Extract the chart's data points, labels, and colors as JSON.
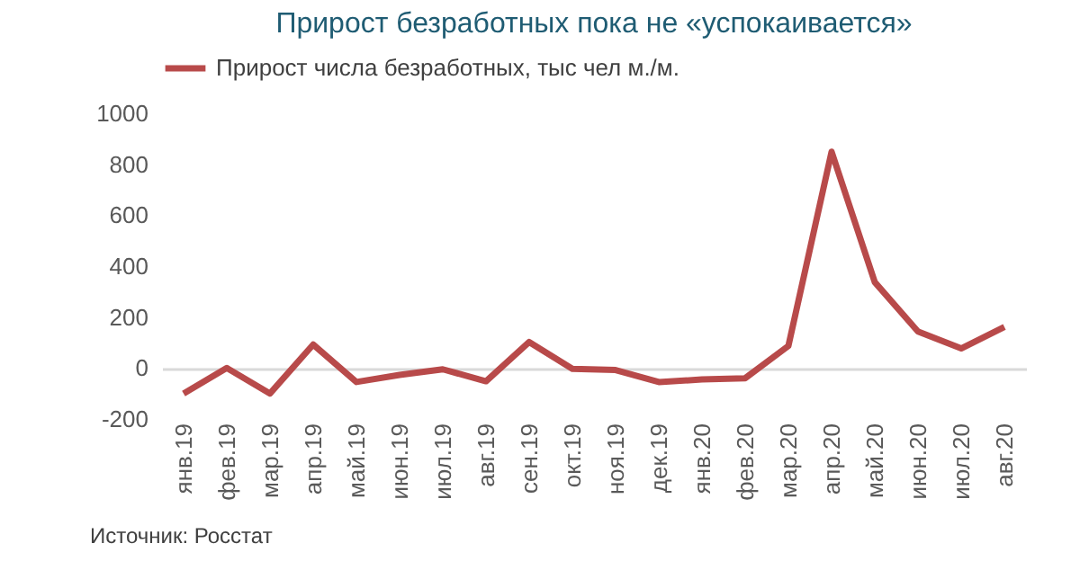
{
  "chart_data": {
    "type": "line",
    "title": "Прирост безработных пока не «успокаивается»",
    "categories": [
      "янв.19",
      "фев.19",
      "мар.19",
      "апр.19",
      "май.19",
      "июн.19",
      "июл.19",
      "авг.19",
      "сен.19",
      "окт.19",
      "ноя.19",
      "дек.19",
      "янв.20",
      "фев.20",
      "мар.20",
      "апр.20",
      "май.20",
      "июн.20",
      "июл.20",
      "авг.20"
    ],
    "series": [
      {
        "name": "Прирост числа безработных, тыс чел м./м.",
        "color": "#b84a4a",
        "values": [
          -100,
          0,
          -100,
          92,
          -55,
          -27,
          -5,
          -52,
          102,
          -3,
          -8,
          -55,
          -45,
          -40,
          87,
          849,
          337,
          143,
          77,
          161
        ]
      }
    ],
    "ylim": [
      -200,
      1000
    ],
    "yticks": [
      -200,
      0,
      200,
      400,
      600,
      800,
      1000
    ],
    "grid": false,
    "legend": "top",
    "marker": "none",
    "line_style": "solid",
    "annotations": [
      "Источник: Росстат"
    ]
  }
}
